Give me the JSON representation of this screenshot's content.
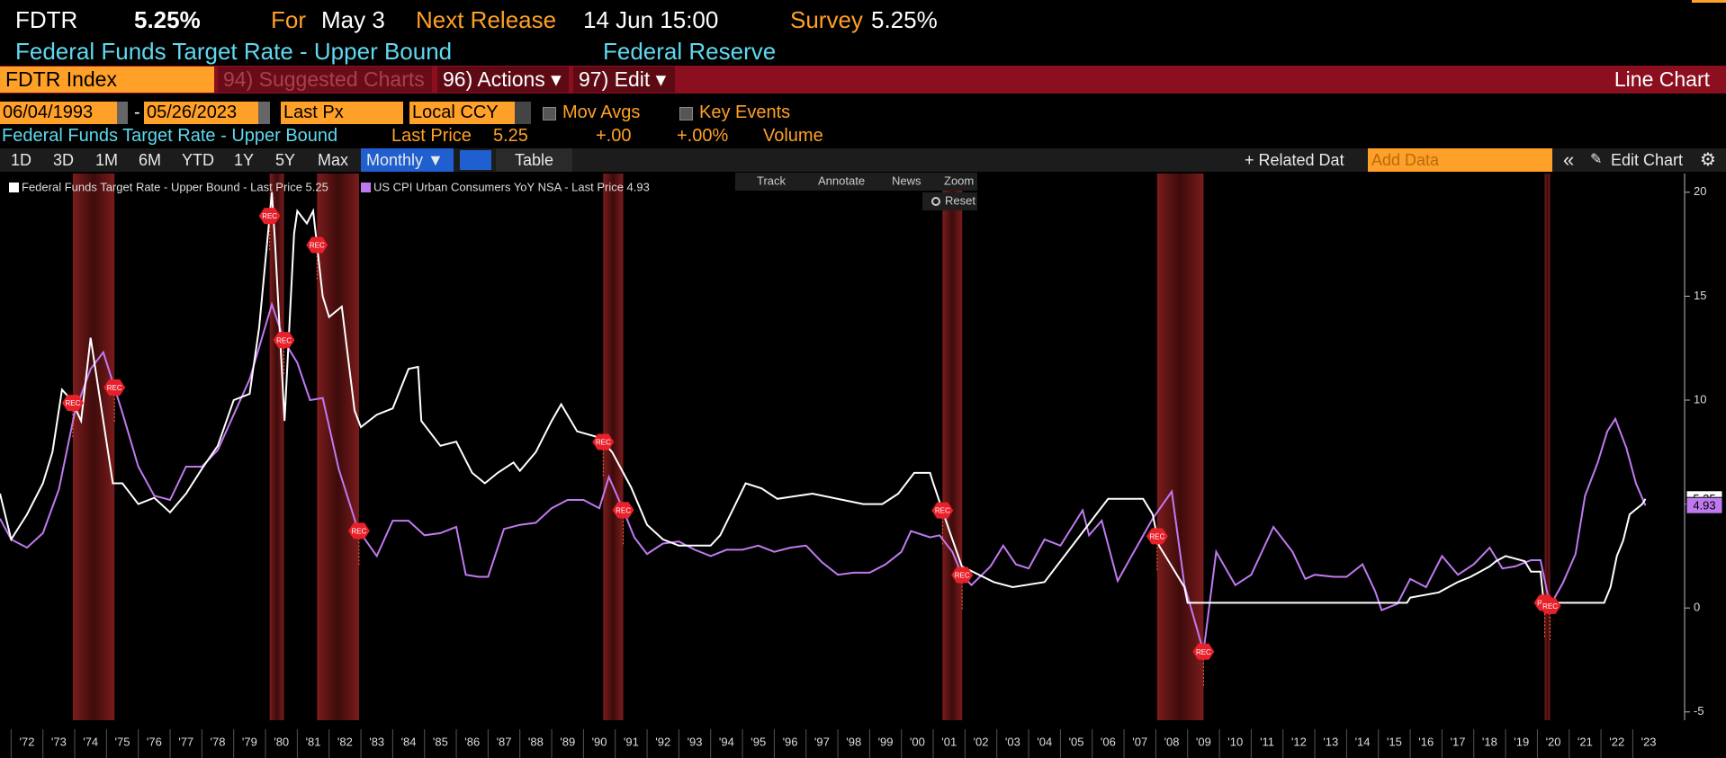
{
  "header": {
    "ticker": "FDTR",
    "price": "5.25%",
    "for_label": "For",
    "for_date": "May 3",
    "next_label": "Next Release",
    "next_date": "14 Jun 15:00",
    "survey_label": "Survey",
    "survey_value": "5.25%",
    "description": "Federal Funds Target Rate - Upper Bound",
    "source": "Federal Reserve"
  },
  "toolbar": {
    "index": "FDTR Index",
    "buttons": [
      "94) Suggested Charts",
      "96) Actions ▾",
      "97) Edit ▾"
    ],
    "chart_kind": "Line Chart"
  },
  "controls": {
    "start_date": "06/04/1993",
    "separator": "-",
    "end_date": "05/26/2023",
    "field": "Last Px",
    "currency": "Local CCY",
    "options": [
      "Mov Avgs",
      "Key Events"
    ]
  },
  "summary": {
    "name": "Federal Funds Target Rate - Upper Bound",
    "last_label": "Last Price",
    "last": "5.25",
    "change": "+.00",
    "change_pct": "+.00%",
    "volume_label": "Volume"
  },
  "range_bar": {
    "ranges": [
      "1D",
      "3D",
      "1M",
      "6M",
      "YTD",
      "1Y",
      "5Y",
      "Max"
    ],
    "period": "Monthly ▼",
    "table": "Table",
    "related": "+ Related Dat",
    "add_data": "Add Data",
    "edit_chart": "Edit Chart"
  },
  "chart_tools": {
    "tools": [
      "Track",
      "Annotate",
      "News",
      "Zoom"
    ],
    "reset": "Reset"
  },
  "chart_data": {
    "type": "line",
    "event_label": "REC",
    "shaded_periods": [
      [
        1973.94,
        1975.25
      ],
      [
        1980.13,
        1980.58
      ],
      [
        1981.62,
        1982.94
      ],
      [
        1990.62,
        1991.25
      ],
      [
        2001.29,
        2001.91
      ],
      [
        2008.04,
        2009.5
      ],
      [
        2020.23,
        2020.4
      ]
    ],
    "xlim": [
      1971.65,
      2024.63
    ],
    "ylim": [
      -5.4,
      20.9
    ],
    "yticks": [
      -5,
      0,
      5,
      10,
      15,
      20
    ],
    "xticks": [
      {
        "value": 1972,
        "label": "'72"
      },
      {
        "value": 1973,
        "label": "'73"
      },
      {
        "value": 1974,
        "label": "'74"
      },
      {
        "value": 1975,
        "label": "'75"
      },
      {
        "value": 1976,
        "label": "'76"
      },
      {
        "value": 1977,
        "label": "'77"
      },
      {
        "value": 1978,
        "label": "'78"
      },
      {
        "value": 1979,
        "label": "'79"
      },
      {
        "value": 1980,
        "label": "'80"
      },
      {
        "value": 1981,
        "label": "'81"
      },
      {
        "value": 1982,
        "label": "'82"
      },
      {
        "value": 1983,
        "label": "'83"
      },
      {
        "value": 1984,
        "label": "'84"
      },
      {
        "value": 1985,
        "label": "'85"
      },
      {
        "value": 1986,
        "label": "'86"
      },
      {
        "value": 1987,
        "label": "'87"
      },
      {
        "value": 1988,
        "label": "'88"
      },
      {
        "value": 1989,
        "label": "'89"
      },
      {
        "value": 1990,
        "label": "'90"
      },
      {
        "value": 1991,
        "label": "'91"
      },
      {
        "value": 1992,
        "label": "'92"
      },
      {
        "value": 1993,
        "label": "'93"
      },
      {
        "value": 1994,
        "label": "'94"
      },
      {
        "value": 1995,
        "label": "'95"
      },
      {
        "value": 1996,
        "label": "'96"
      },
      {
        "value": 1997,
        "label": "'97"
      },
      {
        "value": 1998,
        "label": "'98"
      },
      {
        "value": 1999,
        "label": "'99"
      },
      {
        "value": 2000,
        "label": "'00"
      },
      {
        "value": 2001,
        "label": "'01"
      },
      {
        "value": 2002,
        "label": "'02"
      },
      {
        "value": 2003,
        "label": "'03"
      },
      {
        "value": 2004,
        "label": "'04"
      },
      {
        "value": 2005,
        "label": "'05"
      },
      {
        "value": 2006,
        "label": "'06"
      },
      {
        "value": 2007,
        "label": "'07"
      },
      {
        "value": 2008,
        "label": "'08"
      },
      {
        "value": 2009,
        "label": "'09"
      },
      {
        "value": 2010,
        "label": "'10"
      },
      {
        "value": 2011,
        "label": "'11"
      },
      {
        "value": 2012,
        "label": "'12"
      },
      {
        "value": 2013,
        "label": "'13"
      },
      {
        "value": 2014,
        "label": "'14"
      },
      {
        "value": 2015,
        "label": "'15"
      },
      {
        "value": 2016,
        "label": "'16"
      },
      {
        "value": 2017,
        "label": "'17"
      },
      {
        "value": 2018,
        "label": "'18"
      },
      {
        "value": 2019,
        "label": "'19"
      },
      {
        "value": 2020,
        "label": "'20"
      },
      {
        "value": 2021,
        "label": "'21"
      },
      {
        "value": 2022,
        "label": "'22"
      },
      {
        "value": 2023,
        "label": "'23"
      }
    ],
    "series": [
      {
        "name": "Federal Funds Target Rate - Upper Bound - Last Price 5.25",
        "color": "#ffffff",
        "x": [
          1971.65,
          1972.0,
          1972.5,
          1973.0,
          1973.3,
          1973.6,
          1973.9,
          1974.2,
          1974.5,
          1974.9,
          1975.2,
          1975.5,
          1976.0,
          1976.5,
          1977.0,
          1977.5,
          1978.0,
          1978.5,
          1979.0,
          1979.5,
          1979.8,
          1980.2,
          1980.3,
          1980.6,
          1980.9,
          1981.0,
          1981.3,
          1981.5,
          1981.8,
          1982.0,
          1982.4,
          1982.8,
          1983.0,
          1983.5,
          1984.0,
          1984.5,
          1984.8,
          1984.9,
          1985.5,
          1986.0,
          1986.5,
          1986.9,
          1987.3,
          1987.8,
          1988.0,
          1988.5,
          1989.0,
          1989.3,
          1989.8,
          1990.5,
          1990.9,
          1991.5,
          1992.0,
          1992.5,
          1993.0,
          1994.0,
          1994.3,
          1994.7,
          1995.1,
          1995.6,
          1996.1,
          1997.2,
          1998.8,
          1999.4,
          1999.9,
          2000.4,
          2000.9,
          2001.0,
          2001.5,
          2001.9,
          2002.9,
          2003.5,
          2004.5,
          2005.0,
          2005.5,
          2006.0,
          2006.5,
          2007.6,
          2007.9,
          2008.1,
          2008.5,
          2008.9,
          2009.0,
          2015.9,
          2016.0,
          2016.9,
          2017.2,
          2017.5,
          2017.9,
          2018.2,
          2018.5,
          2018.7,
          2019.0,
          2019.6,
          2019.8,
          2020.1,
          2020.2,
          2022.1,
          2022.3,
          2022.5,
          2022.7,
          2022.9,
          2023.1,
          2023.3,
          2023.4
        ],
        "values": [
          5.5,
          3.3,
          4.5,
          6.0,
          7.5,
          10.5,
          10.0,
          9.0,
          13.0,
          9.0,
          6.0,
          6.0,
          5.0,
          5.3,
          4.6,
          5.5,
          6.7,
          7.8,
          10.0,
          10.3,
          13.5,
          20.0,
          17.6,
          9.0,
          18.0,
          19.1,
          18.5,
          19.1,
          15.0,
          14.0,
          14.5,
          9.5,
          8.7,
          9.3,
          9.6,
          11.5,
          11.6,
          9.0,
          7.8,
          8.0,
          6.5,
          6.0,
          6.5,
          7.0,
          6.6,
          7.5,
          9.0,
          9.8,
          8.5,
          8.2,
          7.5,
          5.8,
          4.0,
          3.3,
          3.0,
          3.0,
          3.5,
          4.75,
          6.0,
          5.75,
          5.25,
          5.5,
          5.0,
          5.0,
          5.5,
          6.5,
          6.5,
          6.0,
          3.75,
          2.0,
          1.25,
          1.0,
          1.25,
          2.25,
          3.25,
          4.25,
          5.25,
          5.25,
          4.5,
          3.0,
          2.0,
          1.0,
          0.25,
          0.25,
          0.5,
          0.75,
          1.0,
          1.25,
          1.5,
          1.75,
          2.0,
          2.25,
          2.5,
          2.25,
          1.75,
          1.75,
          0.25,
          0.25,
          1.0,
          2.5,
          3.25,
          4.5,
          4.75,
          5.0,
          5.25
        ]
      },
      {
        "name": "US CPI Urban Consumers YoY NSA - Last Price 4.93",
        "color": "#c07af0",
        "x": [
          1971.65,
          1972.0,
          1972.5,
          1973.0,
          1973.5,
          1974.0,
          1974.5,
          1974.9,
          1975.5,
          1976.0,
          1976.5,
          1977.0,
          1977.5,
          1978.0,
          1978.5,
          1979.0,
          1979.5,
          1980.2,
          1980.6,
          1981.0,
          1981.4,
          1981.8,
          1982.3,
          1982.9,
          1983.5,
          1984.0,
          1984.5,
          1985.0,
          1985.5,
          1986.0,
          1986.3,
          1986.7,
          1987.0,
          1987.5,
          1988.0,
          1988.5,
          1989.0,
          1989.5,
          1990.0,
          1990.5,
          1990.8,
          1991.2,
          1991.6,
          1992.0,
          1992.5,
          1993.0,
          1993.5,
          1994.0,
          1994.5,
          1995.0,
          1995.5,
          1996.0,
          1996.5,
          1997.0,
          1997.5,
          1998.0,
          1998.5,
          1999.0,
          1999.5,
          2000.0,
          2000.3,
          2000.9,
          2001.2,
          2001.6,
          2001.9,
          2002.2,
          2002.8,
          2003.2,
          2003.6,
          2004.0,
          2004.5,
          2005.0,
          2005.7,
          2005.9,
          2006.3,
          2006.8,
          2007.2,
          2007.9,
          2008.5,
          2008.9,
          2009.5,
          2009.9,
          2010.5,
          2011.0,
          2011.7,
          2012.3,
          2012.7,
          2013.0,
          2013.6,
          2014.0,
          2014.5,
          2014.9,
          2015.1,
          2015.6,
          2016.0,
          2016.5,
          2017.0,
          2017.5,
          2018.0,
          2018.5,
          2018.9,
          2019.3,
          2019.8,
          2020.1,
          2020.4,
          2020.8,
          2021.2,
          2021.5,
          2021.9,
          2022.2,
          2022.45,
          2022.8,
          2023.1,
          2023.4
        ],
        "values": [
          4.3,
          3.3,
          2.9,
          3.6,
          5.7,
          9.4,
          11.5,
          12.3,
          9.4,
          6.8,
          5.4,
          5.2,
          6.8,
          6.8,
          7.6,
          9.3,
          11.0,
          14.6,
          12.8,
          11.8,
          10.0,
          10.1,
          6.7,
          3.8,
          2.5,
          4.2,
          4.2,
          3.5,
          3.6,
          3.9,
          1.6,
          1.5,
          1.5,
          3.8,
          4.0,
          4.1,
          4.8,
          5.2,
          5.2,
          4.8,
          6.3,
          4.9,
          3.4,
          2.6,
          3.1,
          3.2,
          2.8,
          2.5,
          2.8,
          2.8,
          3.0,
          2.7,
          2.9,
          3.0,
          2.2,
          1.6,
          1.7,
          1.7,
          2.1,
          2.7,
          3.7,
          3.4,
          3.5,
          2.7,
          1.6,
          1.1,
          2.0,
          3.0,
          2.1,
          1.9,
          3.3,
          3.0,
          4.7,
          3.5,
          4.2,
          1.3,
          2.4,
          4.3,
          5.6,
          1.1,
          -2.1,
          2.7,
          1.1,
          1.6,
          3.9,
          2.7,
          1.4,
          1.6,
          1.5,
          1.5,
          2.1,
          0.8,
          -0.1,
          0.2,
          1.4,
          1.0,
          2.5,
          1.6,
          2.1,
          2.9,
          1.9,
          2.0,
          2.3,
          2.3,
          0.1,
          1.2,
          2.6,
          5.4,
          7.0,
          8.5,
          9.1,
          7.7,
          6.0,
          4.93
        ]
      }
    ]
  }
}
